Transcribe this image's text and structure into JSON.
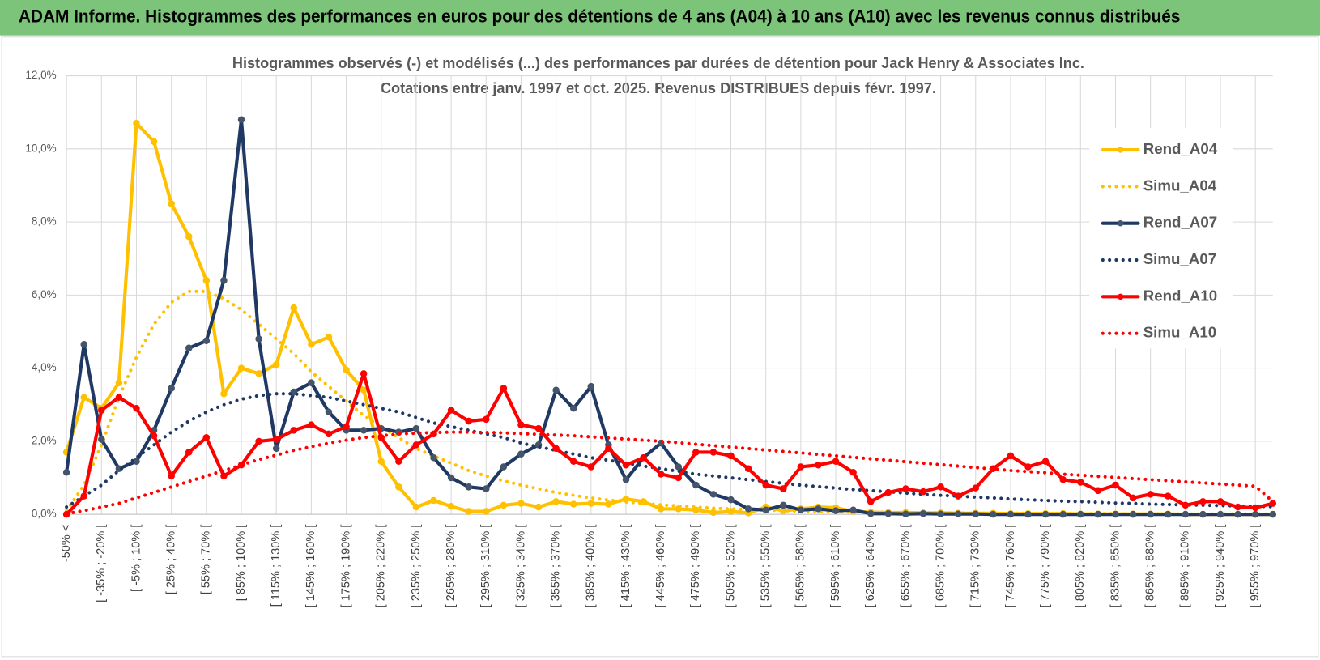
{
  "header": {
    "title": "ADAM Informe. Histogrammes des performances en euros pour des détentions de 4 ans (A04) à 10 ans (A10) avec les revenus connus distribués"
  },
  "chart_data": {
    "type": "line",
    "title": "Histogrammes observés (-) et modélisés (...) des performances par durées de détention pour Jack Henry & Associates Inc.",
    "subtitle": "Cotations entre janv. 1997 et oct. 2025.  Revenus DISTRIBUES depuis févr. 1997.",
    "categories": [
      "-50% <",
      null,
      "[ -35% ; -20% [",
      null,
      "[ -5% ; 10% [",
      null,
      "[ 25% ; 40% [",
      null,
      "[ 55% ; 70% [",
      null,
      "[ 85% ; 100% [",
      null,
      "[ 115% ; 130% [",
      null,
      "[ 145% ; 160% [",
      null,
      "[ 175% ; 190% [",
      null,
      "[ 205% ; 220% [",
      null,
      "[ 235% ; 250% [",
      null,
      "[ 265% ; 280% [",
      null,
      "[ 295% ; 310% [",
      null,
      "[ 325% ; 340% [",
      null,
      "[ 355% ; 370% [",
      null,
      "[ 385% ; 400% [",
      null,
      "[ 415% ; 430% [",
      null,
      "[ 445% ; 460% [",
      null,
      "[ 475% ; 490% [",
      null,
      "[ 505% ; 520% [",
      null,
      "[ 535% ; 550% [",
      null,
      "[ 565% ; 580% [",
      null,
      "[ 595% ; 610% [",
      null,
      "[ 625% ; 640% [",
      null,
      "[ 655% ; 670% [",
      null,
      "[ 685% ; 700% [",
      null,
      "[ 715% ; 730% [",
      null,
      "[ 745% ; 760% [",
      null,
      "[ 775% ; 790% [",
      null,
      "[ 805% ; 820% [",
      null,
      "[ 835% ; 850% [",
      null,
      "[ 865% ; 880% [",
      null,
      "[ 895% ; 910% [",
      null,
      "[ 925% ; 940% [",
      null,
      "[ 955% ; 970% [",
      null
    ],
    "ylim": [
      0,
      12
    ],
    "yticks": [
      {
        "value": 0,
        "label": "0,0%"
      },
      {
        "value": 2,
        "label": "2,0%"
      },
      {
        "value": 4,
        "label": "4,0%"
      },
      {
        "value": 6,
        "label": "6,0%"
      },
      {
        "value": 8,
        "label": "8,0%"
      },
      {
        "value": 10,
        "label": "10,0%"
      },
      {
        "value": 12,
        "label": "12,0%"
      }
    ],
    "grid": true,
    "legend": "right",
    "series": [
      {
        "name": "Rend_A04",
        "color": "#ffc000",
        "line_style": "solid",
        "marker": true,
        "marker_color": "#ffc000",
        "values": [
          1.7,
          3.2,
          2.9,
          3.6,
          10.7,
          10.2,
          8.5,
          7.6,
          6.4,
          3.3,
          4.0,
          3.85,
          4.1,
          5.65,
          4.65,
          4.85,
          3.95,
          3.4,
          1.45,
          0.75,
          0.2,
          0.38,
          0.22,
          0.08,
          0.08,
          0.25,
          0.3,
          0.2,
          0.35,
          0.28,
          0.3,
          0.28,
          0.42,
          0.35,
          0.15,
          0.15,
          0.12,
          0.05,
          0.08,
          0.04,
          0.2,
          0.1,
          0.15,
          0.2,
          0.18,
          0.08,
          0.06,
          0.05,
          0.05,
          0.04,
          0.04,
          0.03,
          0.03,
          0.03,
          0.02,
          0.02,
          0.02,
          0.02,
          0.01,
          0.01,
          0.01,
          0.01,
          0.01,
          0.01,
          0,
          0,
          0,
          0,
          0,
          0
        ]
      },
      {
        "name": "Simu_A04",
        "color": "#ffc000",
        "line_style": "dotted",
        "marker": false,
        "values": [
          0.1,
          0.8,
          1.9,
          3.2,
          4.3,
          5.2,
          5.8,
          6.1,
          6.1,
          5.9,
          5.6,
          5.2,
          4.8,
          4.4,
          3.9,
          3.5,
          3.1,
          2.7,
          2.4,
          2.1,
          1.8,
          1.6,
          1.4,
          1.2,
          1.05,
          0.92,
          0.8,
          0.7,
          0.6,
          0.52,
          0.45,
          0.39,
          0.34,
          0.3,
          0.26,
          0.23,
          0.2,
          0.17,
          0.15,
          0.13,
          0.12,
          0.1,
          0.09,
          0.08,
          0.07,
          0.06,
          0.06,
          0.05,
          0.05,
          0.04,
          0.04,
          0.04,
          0.03,
          0.03,
          0.03,
          0.03,
          0.02,
          0.02,
          0.02,
          0.02,
          0.02,
          0.01,
          0.01,
          0.01,
          0.01,
          0.01,
          0.01,
          0.01,
          0.01,
          0.01
        ]
      },
      {
        "name": "Rend_A07",
        "color": "#1f3864",
        "line_style": "solid",
        "marker": true,
        "marker_color": "#44546a",
        "values": [
          1.15,
          4.65,
          2.05,
          1.25,
          1.45,
          2.3,
          3.45,
          4.55,
          4.75,
          6.4,
          10.8,
          4.8,
          1.8,
          3.35,
          3.6,
          2.8,
          2.3,
          2.3,
          2.35,
          2.25,
          2.35,
          1.55,
          1.0,
          0.75,
          0.7,
          1.3,
          1.65,
          1.9,
          3.4,
          2.9,
          3.5,
          1.9,
          0.95,
          1.55,
          1.95,
          1.3,
          0.8,
          0.55,
          0.4,
          0.15,
          0.12,
          0.25,
          0.12,
          0.15,
          0.1,
          0.12,
          0.02,
          0.02,
          0.01,
          0.02,
          0.01,
          0.01,
          0.01,
          0,
          0,
          0,
          0,
          0,
          0,
          0,
          0,
          0,
          0,
          0,
          0,
          0,
          0,
          0,
          0,
          0
        ]
      },
      {
        "name": "Simu_A07",
        "color": "#1f3864",
        "line_style": "dotted",
        "marker": false,
        "values": [
          0.2,
          0.5,
          0.8,
          1.2,
          1.55,
          1.9,
          2.25,
          2.55,
          2.8,
          3.0,
          3.15,
          3.25,
          3.3,
          3.3,
          3.25,
          3.2,
          3.1,
          3.0,
          2.9,
          2.8,
          2.65,
          2.5,
          2.4,
          2.3,
          2.2,
          2.1,
          1.95,
          1.85,
          1.75,
          1.65,
          1.55,
          1.48,
          1.4,
          1.32,
          1.25,
          1.18,
          1.1,
          1.05,
          1.0,
          0.95,
          0.9,
          0.85,
          0.8,
          0.76,
          0.72,
          0.68,
          0.65,
          0.62,
          0.58,
          0.55,
          0.52,
          0.5,
          0.47,
          0.45,
          0.42,
          0.4,
          0.38,
          0.36,
          0.35,
          0.33,
          0.31,
          0.3,
          0.28,
          0.27,
          0.26,
          0.25,
          0.24,
          0.23,
          0.22,
          0.21
        ]
      },
      {
        "name": "Rend_A10",
        "color": "#ff0000",
        "line_style": "solid",
        "marker": true,
        "marker_color": "#ff0000",
        "values": [
          0,
          0.5,
          2.85,
          3.2,
          2.9,
          2.15,
          1.05,
          1.7,
          2.1,
          1.05,
          1.35,
          2.0,
          2.05,
          2.3,
          2.45,
          2.2,
          2.4,
          3.85,
          2.1,
          1.45,
          1.9,
          2.2,
          2.85,
          2.55,
          2.6,
          3.45,
          2.45,
          2.35,
          1.8,
          1.45,
          1.3,
          1.8,
          1.35,
          1.55,
          1.1,
          1.0,
          1.7,
          1.7,
          1.6,
          1.25,
          0.8,
          0.7,
          1.3,
          1.35,
          1.45,
          1.15,
          0.35,
          0.6,
          0.7,
          0.62,
          0.75,
          0.5,
          0.72,
          1.25,
          1.6,
          1.3,
          1.45,
          0.95,
          0.88,
          0.65,
          0.8,
          0.45,
          0.55,
          0.5,
          0.25,
          0.35,
          0.35,
          0.2,
          0.18,
          0.3
        ]
      },
      {
        "name": "Simu_A10",
        "color": "#ff0000",
        "line_style": "dotted",
        "marker": false,
        "values": [
          0.02,
          0.1,
          0.2,
          0.3,
          0.45,
          0.6,
          0.75,
          0.9,
          1.05,
          1.2,
          1.35,
          1.5,
          1.62,
          1.75,
          1.85,
          1.95,
          2.03,
          2.1,
          2.15,
          2.2,
          2.22,
          2.24,
          2.25,
          2.25,
          2.24,
          2.23,
          2.21,
          2.19,
          2.17,
          2.15,
          2.12,
          2.09,
          2.06,
          2.03,
          2.0,
          1.96,
          1.92,
          1.88,
          1.84,
          1.8,
          1.76,
          1.72,
          1.68,
          1.64,
          1.6,
          1.56,
          1.52,
          1.48,
          1.44,
          1.4,
          1.36,
          1.32,
          1.28,
          1.24,
          1.2,
          1.17,
          1.14,
          1.1,
          1.07,
          1.04,
          1.01,
          0.98,
          0.95,
          0.92,
          0.89,
          0.86,
          0.83,
          0.8,
          0.77,
          0.35
        ]
      }
    ]
  }
}
